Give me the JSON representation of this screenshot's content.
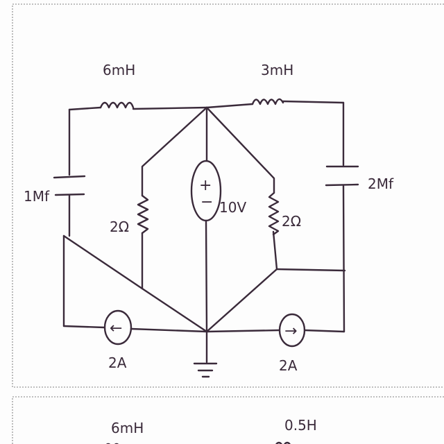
{
  "circuit_1": {
    "inductor_left_label": "6mH",
    "inductor_right_label": "3mH",
    "capacitor_left_label": "1Mf",
    "capacitor_right_label": "2Mf",
    "resistor_left_label": "2Ω",
    "resistor_right_label": "2Ω",
    "voltage_source_label": "10V",
    "current_source_left_label": "2A",
    "current_source_right_label": "2A",
    "plus_sign": "+",
    "minus_sign": "−",
    "arrow_left": "←",
    "arrow_right": "→"
  },
  "circuit_2": {
    "inductor_left_label": "6mH",
    "inductor_right_label": "0.5H"
  },
  "colors": {
    "ink": "#3a2a3a",
    "frame": "#9a9a9a",
    "paper": "#fdfdfd"
  }
}
